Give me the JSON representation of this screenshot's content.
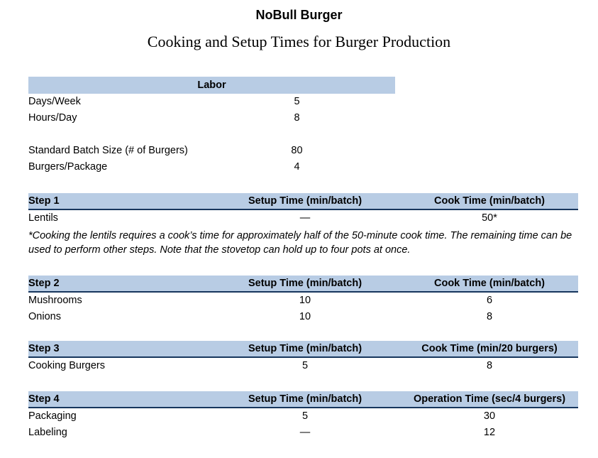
{
  "title": "NoBull Burger",
  "subtitle": "Cooking and Setup Times for Burger Production",
  "colors": {
    "header_fill": "#b8cce4",
    "header_border": "#17365d"
  },
  "labor": {
    "header": "Labor",
    "rows": [
      {
        "label": "Days/Week",
        "value": "5"
      },
      {
        "label": "Hours/Day",
        "value": "8"
      },
      {
        "label": "Standard Batch Size (# of Burgers)",
        "value": "80"
      },
      {
        "label": "Burgers/Package",
        "value": "4"
      }
    ]
  },
  "steps": [
    {
      "name": "Step 1",
      "col2": "Setup Time (min/batch)",
      "col3": "Cook Time (min/batch)",
      "rows": [
        [
          "Lentils",
          "—",
          "50*"
        ]
      ],
      "footnote": "*Cooking the lentils requires a cook’s time for approximately half of the 50-minute cook time. The remaining time can be used to perform other steps. Note that the stovetop can hold up to four pots at once."
    },
    {
      "name": "Step 2",
      "col2": "Setup Time (min/batch)",
      "col3": "Cook Time (min/batch)",
      "rows": [
        [
          "Mushrooms",
          "10",
          "6"
        ],
        [
          "Onions",
          "10",
          "8"
        ]
      ]
    },
    {
      "name": "Step 3",
      "col2": "Setup Time (min/batch)",
      "col3": "Cook Time (min/20 burgers)",
      "rows": [
        [
          "Cooking Burgers",
          "5",
          "8"
        ]
      ]
    },
    {
      "name": "Step 4",
      "col2": "Setup Time (min/batch)",
      "col3": "Operation Time (sec/4 burgers)",
      "rows": [
        [
          "Packaging",
          "5",
          "30"
        ],
        [
          "Labeling",
          "—",
          "12"
        ]
      ]
    }
  ]
}
